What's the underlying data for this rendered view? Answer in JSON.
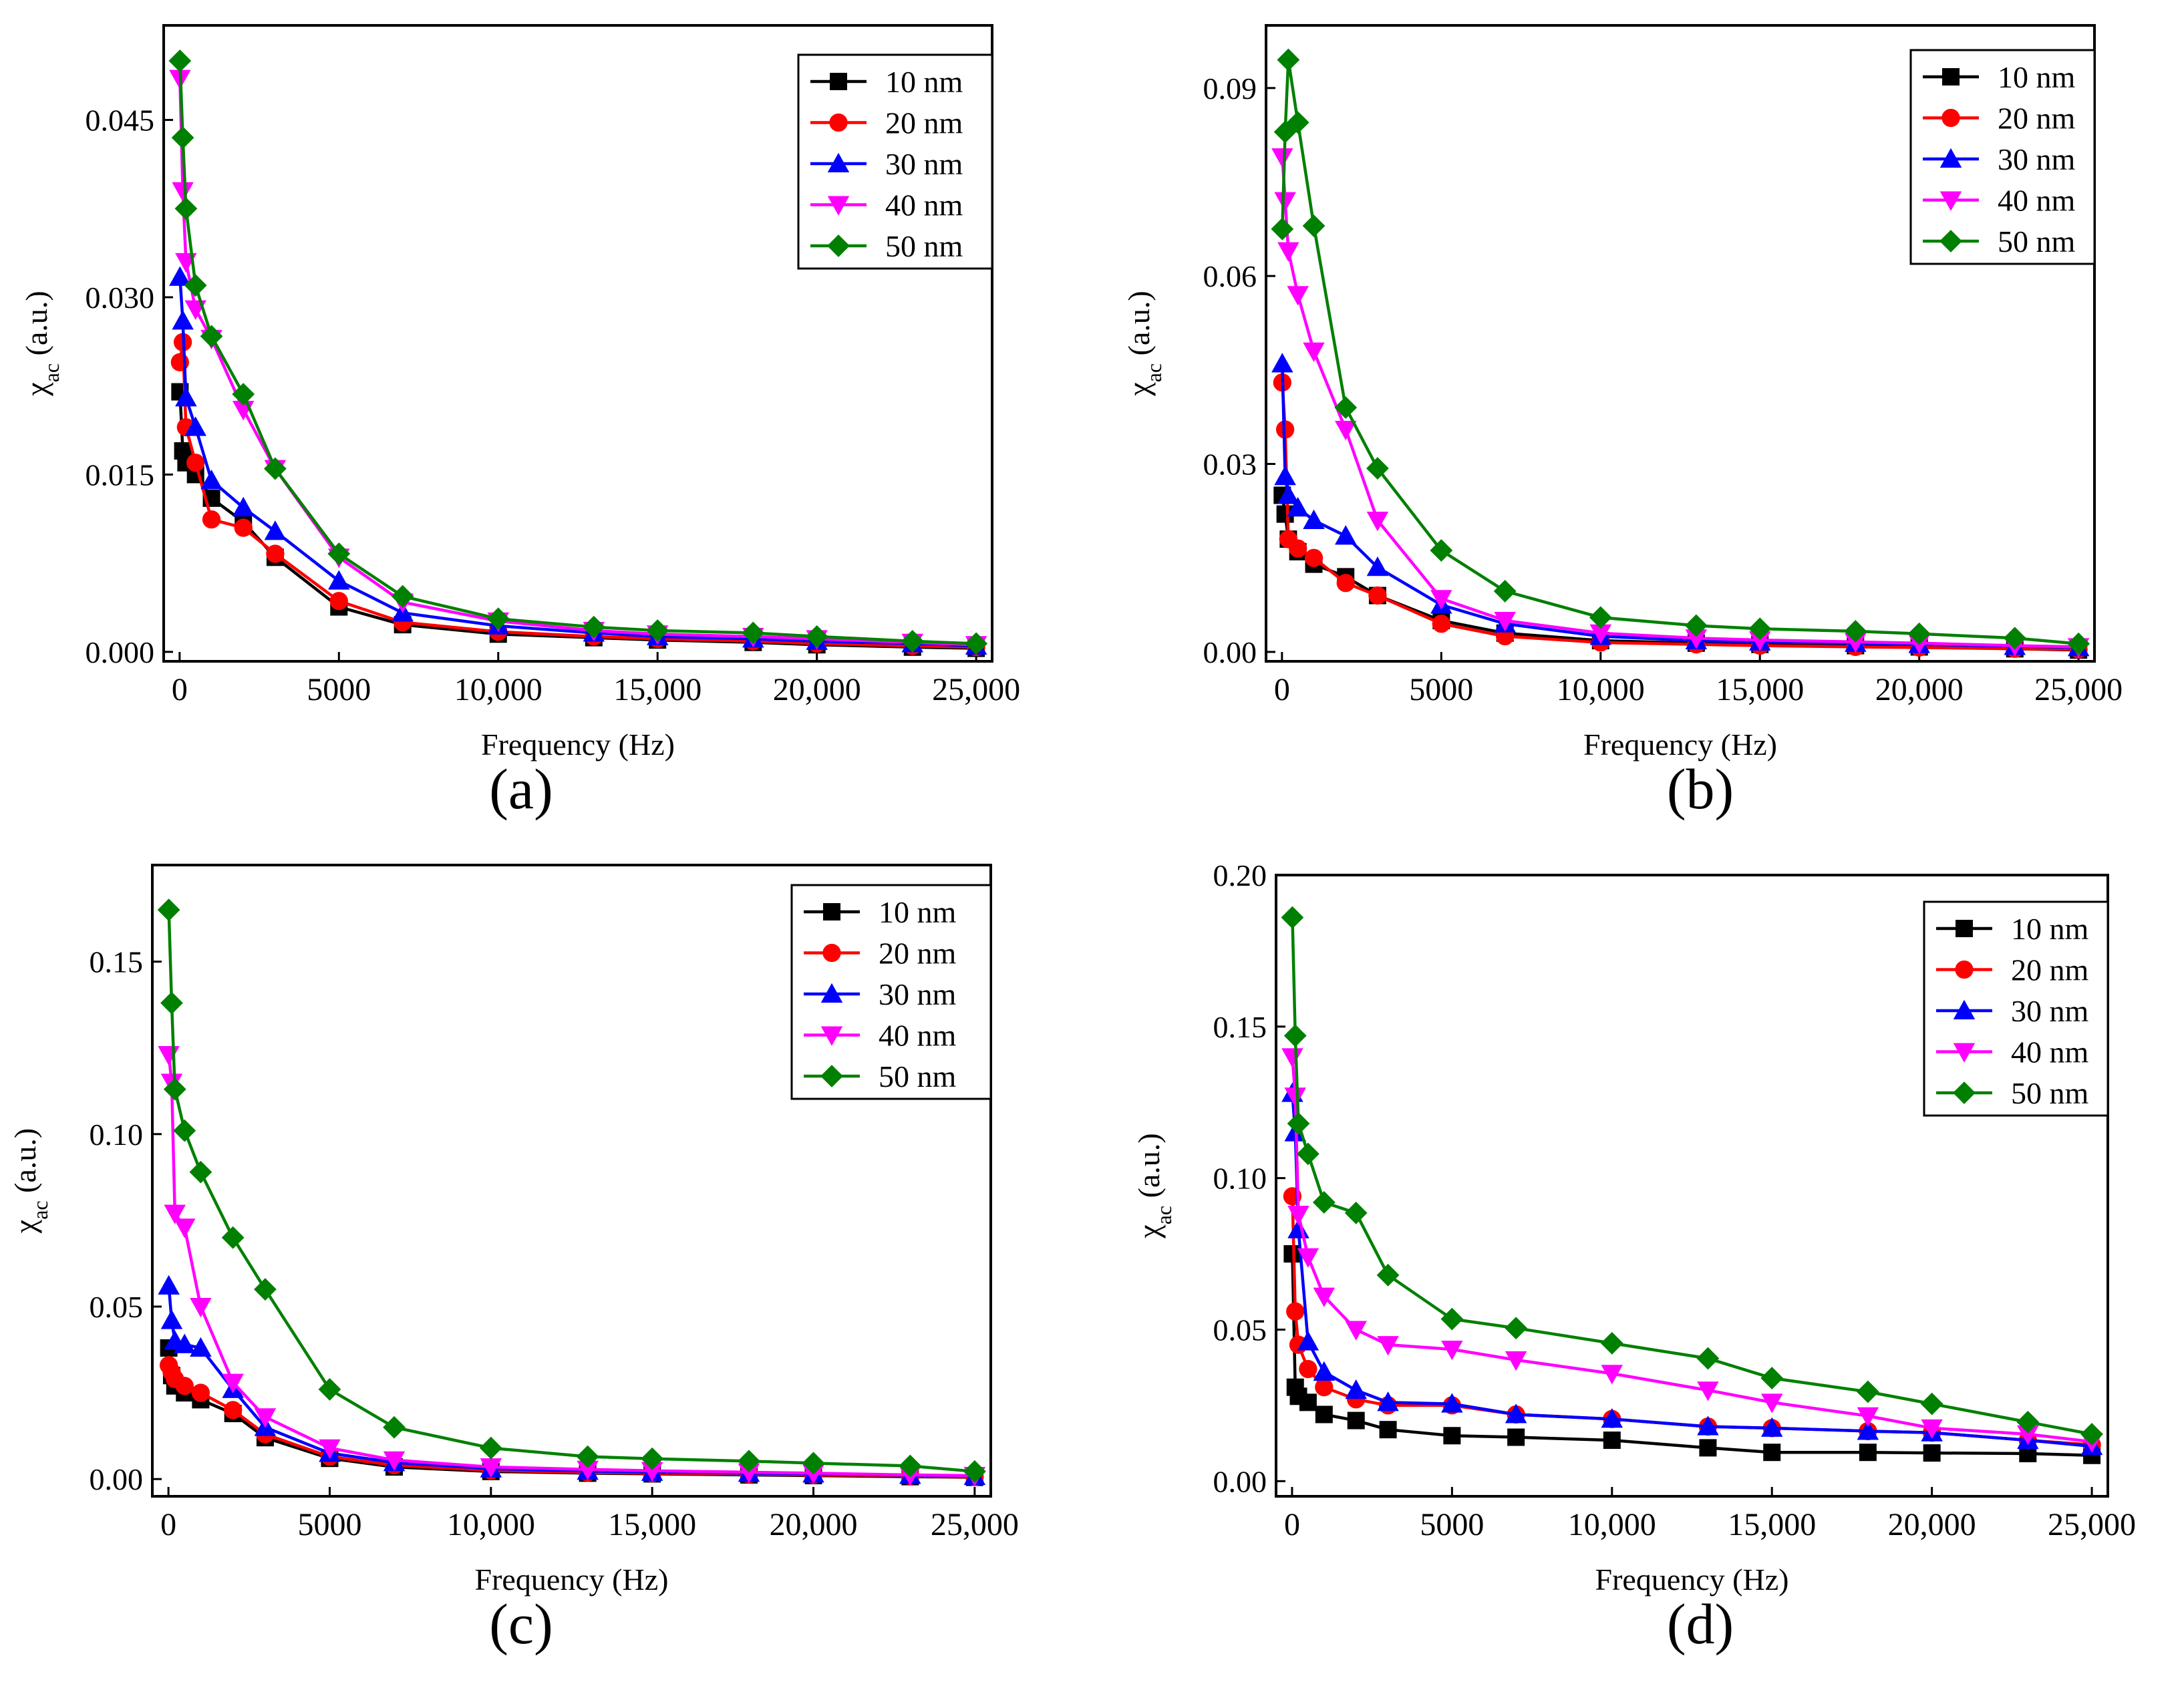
{
  "figure": {
    "panel_labels": [
      "(a)",
      "(b)",
      "(c)",
      "(d)"
    ]
  },
  "chart_data": [
    {
      "type": "line",
      "panel": "(a)",
      "xlabel": "Frequency (Hz)",
      "ylabel": "χac (a.u.)",
      "ylabel_main": "χ",
      "ylabel_sub": "ac",
      "ylabel_rest": " (a.u.)",
      "xlim": [
        -500,
        25500
      ],
      "ylim": [
        -0.0008,
        0.053
      ],
      "xticks": [
        0,
        5000,
        10000,
        15000,
        20000,
        25000
      ],
      "xtick_labels": [
        "0",
        "5000",
        "10,000",
        "15,000",
        "20,000",
        "25,000"
      ],
      "yticks": [
        0,
        0.015,
        0.03,
        0.045
      ],
      "ytick_labels": [
        "0.000",
        "0.015",
        "0.030",
        "0.045"
      ],
      "legend_position": "top-right",
      "grid": false,
      "x": [
        10,
        100,
        200,
        500,
        1000,
        2000,
        3000,
        5000,
        7000,
        10000,
        13000,
        15000,
        18000,
        20000,
        23000,
        25000
      ],
      "series": [
        {
          "name": "10 nm",
          "color": "#000000",
          "marker": "square",
          "values": [
            0.022,
            0.017,
            0.016,
            0.015,
            0.013,
            0.011,
            0.008,
            0.0038,
            0.0023,
            0.0015,
            0.0012,
            0.001,
            0.0008,
            0.0006,
            0.0004,
            0.0003
          ]
        },
        {
          "name": "20 nm",
          "color": "#ff0000",
          "marker": "circle",
          "values": [
            0.0245,
            0.0262,
            0.019,
            0.016,
            0.0112,
            0.0105,
            0.0083,
            0.0043,
            0.0025,
            0.0017,
            0.0013,
            0.0011,
            0.0009,
            0.0007,
            0.0005,
            0.0004
          ]
        },
        {
          "name": "30 nm",
          "color": "#0000ff",
          "marker": "triangle-up",
          "values": [
            0.0317,
            0.028,
            0.0215,
            0.019,
            0.0145,
            0.0122,
            0.0102,
            0.006,
            0.0033,
            0.0022,
            0.0016,
            0.0013,
            0.0011,
            0.0009,
            0.0007,
            0.0005
          ]
        },
        {
          "name": "40 nm",
          "color": "#ff00ff",
          "marker": "triangle-down",
          "values": [
            0.0485,
            0.039,
            0.033,
            0.029,
            0.0265,
            0.0205,
            0.0155,
            0.008,
            0.0042,
            0.0026,
            0.0018,
            0.0015,
            0.0013,
            0.0011,
            0.0008,
            0.0006
          ]
        },
        {
          "name": "50 nm",
          "color": "#008000",
          "marker": "diamond",
          "values": [
            0.05,
            0.0435,
            0.0375,
            0.031,
            0.0267,
            0.0218,
            0.0155,
            0.0083,
            0.0047,
            0.0028,
            0.0021,
            0.0018,
            0.0016,
            0.0013,
            0.0009,
            0.0007
          ]
        }
      ]
    },
    {
      "type": "line",
      "panel": "(b)",
      "xlabel": "Frequency (Hz)",
      "ylabel": "χac (a.u.)",
      "ylabel_main": "χ",
      "ylabel_sub": "ac",
      "ylabel_rest": " (a.u.)",
      "xlim": [
        -500,
        25500
      ],
      "ylim": [
        -0.0015,
        0.1
      ],
      "xticks": [
        0,
        5000,
        10000,
        15000,
        20000,
        25000
      ],
      "xtick_labels": [
        "0",
        "5000",
        "10,000",
        "15,000",
        "20,000",
        "25,000"
      ],
      "yticks": [
        0,
        0.03,
        0.06,
        0.09
      ],
      "ytick_labels": [
        "0.00",
        "0.03",
        "0.06",
        "0.09"
      ],
      "legend_position": "top-right",
      "grid": false,
      "x": [
        10,
        100,
        200,
        500,
        1000,
        2000,
        3000,
        5000,
        7000,
        10000,
        13000,
        15000,
        18000,
        20000,
        23000,
        25000
      ],
      "series": [
        {
          "name": "10 nm",
          "color": "#000000",
          "marker": "square",
          "values": [
            0.025,
            0.022,
            0.018,
            0.016,
            0.014,
            0.012,
            0.009,
            0.005,
            0.003,
            0.0018,
            0.0014,
            0.0012,
            0.001,
            0.0008,
            0.0005,
            0.0003
          ]
        },
        {
          "name": "20 nm",
          "color": "#ff0000",
          "marker": "circle",
          "values": [
            0.043,
            0.0355,
            0.018,
            0.0165,
            0.015,
            0.011,
            0.009,
            0.0045,
            0.0025,
            0.0015,
            0.0012,
            0.001,
            0.0008,
            0.0007,
            0.0005,
            0.0004
          ]
        },
        {
          "name": "30 nm",
          "color": "#0000ff",
          "marker": "triangle-up",
          "values": [
            0.046,
            0.028,
            0.025,
            0.023,
            0.021,
            0.0185,
            0.0135,
            0.0075,
            0.0045,
            0.0025,
            0.0018,
            0.0016,
            0.0014,
            0.0012,
            0.0009,
            0.0007
          ]
        },
        {
          "name": "40 nm",
          "color": "#ff00ff",
          "marker": "triangle-down",
          "values": [
            0.079,
            0.072,
            0.064,
            0.057,
            0.048,
            0.0355,
            0.021,
            0.0085,
            0.005,
            0.003,
            0.0022,
            0.0019,
            0.0016,
            0.0014,
            0.001,
            0.0008
          ]
        },
        {
          "name": "50 nm",
          "color": "#008000",
          "marker": "diamond",
          "values": [
            0.0675,
            0.083,
            0.0945,
            0.0845,
            0.068,
            0.039,
            0.0293,
            0.0162,
            0.0097,
            0.0055,
            0.0042,
            0.0037,
            0.0033,
            0.0029,
            0.0022,
            0.0013
          ]
        }
      ]
    },
    {
      "type": "line",
      "panel": "(c)",
      "xlabel": "Frequency (Hz)",
      "ylabel": "χac (a.u.)",
      "ylabel_main": "χ",
      "ylabel_sub": "ac",
      "ylabel_rest": " (a.u.)",
      "xlim": [
        -500,
        25500
      ],
      "ylim": [
        -0.005,
        0.178
      ],
      "xticks": [
        0,
        5000,
        10000,
        15000,
        20000,
        25000
      ],
      "xtick_labels": [
        "0",
        "5000",
        "10,000",
        "15,000",
        "20,000",
        "25,000"
      ],
      "yticks": [
        0,
        0.05,
        0.1,
        0.15
      ],
      "ytick_labels": [
        "0.00",
        "0.05",
        "0.10",
        "0.15"
      ],
      "legend_position": "top-right",
      "grid": false,
      "x": [
        10,
        100,
        200,
        500,
        1000,
        2000,
        3000,
        5000,
        7000,
        10000,
        13000,
        15000,
        18000,
        20000,
        23000,
        25000
      ],
      "series": [
        {
          "name": "10 nm",
          "color": "#000000",
          "marker": "square",
          "values": [
            0.038,
            0.03,
            0.027,
            0.025,
            0.023,
            0.019,
            0.012,
            0.006,
            0.0035,
            0.0022,
            0.0017,
            0.0015,
            0.0012,
            0.001,
            0.0007,
            0.0005
          ]
        },
        {
          "name": "20 nm",
          "color": "#ff0000",
          "marker": "circle",
          "values": [
            0.033,
            0.031,
            0.029,
            0.027,
            0.025,
            0.02,
            0.013,
            0.0065,
            0.004,
            0.0025,
            0.0019,
            0.0017,
            0.0014,
            0.0012,
            0.0009,
            0.0006
          ]
        },
        {
          "name": "30 nm",
          "color": "#0000ff",
          "marker": "triangle-up",
          "values": [
            0.056,
            0.046,
            0.04,
            0.039,
            0.038,
            0.026,
            0.015,
            0.0075,
            0.0048,
            0.003,
            0.0023,
            0.002,
            0.0017,
            0.0015,
            0.0011,
            0.0008
          ]
        },
        {
          "name": "40 nm",
          "color": "#ff00ff",
          "marker": "triangle-down",
          "values": [
            0.123,
            0.115,
            0.077,
            0.073,
            0.05,
            0.028,
            0.018,
            0.009,
            0.0055,
            0.0035,
            0.0028,
            0.0024,
            0.002,
            0.0017,
            0.0012,
            0.001
          ]
        },
        {
          "name": "50 nm",
          "color": "#008000",
          "marker": "diamond",
          "values": [
            0.165,
            0.138,
            0.113,
            0.101,
            0.089,
            0.07,
            0.055,
            0.026,
            0.015,
            0.009,
            0.0065,
            0.0059,
            0.0052,
            0.0046,
            0.0038,
            0.0022
          ]
        }
      ]
    },
    {
      "type": "line",
      "panel": "(d)",
      "xlabel": "Frequency (Hz)",
      "ylabel": "χac (a.u.)",
      "ylabel_main": "χ",
      "ylabel_sub": "ac",
      "ylabel_rest": " (a.u.)",
      "xlim": [
        -500,
        25500
      ],
      "ylim": [
        -0.005,
        0.2
      ],
      "xticks": [
        0,
        5000,
        10000,
        15000,
        20000,
        25000
      ],
      "xtick_labels": [
        "0",
        "5000",
        "10,000",
        "15,000",
        "20,000",
        "25,000"
      ],
      "yticks": [
        0,
        0.05,
        0.1,
        0.15,
        0.2
      ],
      "ytick_labels": [
        "0.00",
        "0.05",
        "0.10",
        "0.15",
        "0.20"
      ],
      "legend_position": "top-right",
      "grid": false,
      "x": [
        10,
        100,
        200,
        500,
        1000,
        2000,
        3000,
        5000,
        7000,
        10000,
        13000,
        15000,
        18000,
        20000,
        23000,
        25000
      ],
      "series": [
        {
          "name": "10 nm",
          "color": "#000000",
          "marker": "square",
          "values": [
            0.075,
            0.031,
            0.028,
            0.026,
            0.022,
            0.02,
            0.017,
            0.015,
            0.0145,
            0.0135,
            0.011,
            0.0095,
            0.0095,
            0.0093,
            0.0091,
            0.0085
          ]
        },
        {
          "name": "20 nm",
          "color": "#ff0000",
          "marker": "circle",
          "values": [
            0.094,
            0.056,
            0.045,
            0.037,
            0.031,
            0.027,
            0.025,
            0.025,
            0.022,
            0.0205,
            0.018,
            0.0175,
            0.0165,
            0.016,
            0.0135,
            0.012
          ]
        },
        {
          "name": "30 nm",
          "color": "#0000ff",
          "marker": "triangle-up",
          "values": [
            0.128,
            0.115,
            0.083,
            0.046,
            0.036,
            0.03,
            0.026,
            0.0255,
            0.022,
            0.0205,
            0.018,
            0.0175,
            0.0165,
            0.016,
            0.0135,
            0.0115
          ]
        },
        {
          "name": "40 nm",
          "color": "#ff00ff",
          "marker": "triangle-down",
          "values": [
            0.14,
            0.127,
            0.088,
            0.074,
            0.061,
            0.05,
            0.045,
            0.0435,
            0.04,
            0.0355,
            0.03,
            0.026,
            0.0215,
            0.0175,
            0.0155,
            0.013
          ]
        },
        {
          "name": "50 nm",
          "color": "#008000",
          "marker": "diamond",
          "values": [
            0.186,
            0.147,
            0.118,
            0.108,
            0.092,
            0.0885,
            0.068,
            0.0535,
            0.0505,
            0.0455,
            0.0405,
            0.034,
            0.0295,
            0.0255,
            0.0195,
            0.0155
          ]
        }
      ]
    }
  ]
}
